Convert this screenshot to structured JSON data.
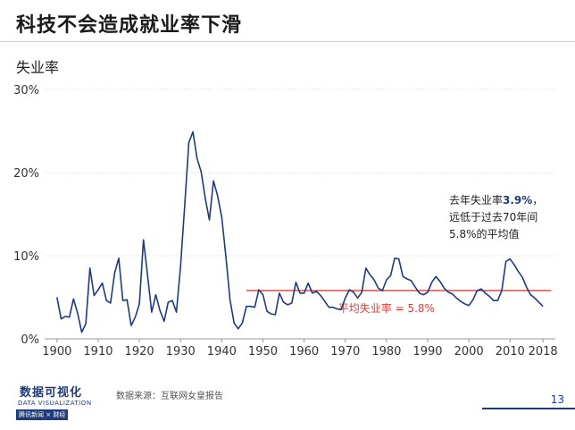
{
  "title": "科技不会造成就业率下滑",
  "footer": {
    "logo_main": "数据可视化",
    "logo_sub": "DATA VISUALIZATION",
    "logo_brand": "腾讯新闻 × 财经",
    "source": "数据来源：互联网女皇报告",
    "page_number": "13"
  },
  "colors": {
    "series": "#1f3a7d",
    "average": "#e53935",
    "axis": "#999999",
    "grid": "#d9d9d9",
    "highlight": "#1f3a7d"
  },
  "chart_data": {
    "type": "line",
    "ylabel": "失业率",
    "xlabel": "",
    "xlim": [
      1897,
      2021
    ],
    "ylim": [
      0,
      30
    ],
    "x_ticks": [
      "1900",
      "1910",
      "1920",
      "1930",
      "1940",
      "1950",
      "1960",
      "1970",
      "1980",
      "1990",
      "2000",
      "2010",
      "2018"
    ],
    "x_tick_values": [
      1900,
      1910,
      1920,
      1930,
      1940,
      1950,
      1960,
      1970,
      1980,
      1990,
      2000,
      2010,
      2018
    ],
    "y_ticks": [
      "0%",
      "10%",
      "20%",
      "30%"
    ],
    "y_tick_values": [
      0,
      10,
      20,
      30
    ],
    "grid": "horizontal",
    "series": [
      {
        "x": [
          1900,
          1901,
          1902,
          1903,
          1904,
          1905,
          1906,
          1907,
          1908,
          1909,
          1910,
          1911,
          1912,
          1913,
          1914,
          1915,
          1916,
          1917,
          1918,
          1919,
          1920,
          1921,
          1922,
          1923,
          1924,
          1925,
          1926,
          1927,
          1928,
          1929,
          1930,
          1931,
          1932,
          1933,
          1934,
          1935,
          1936,
          1937,
          1938,
          1939,
          1940,
          1941,
          1942,
          1943,
          1944,
          1945,
          1946,
          1947,
          1948,
          1949,
          1950,
          1951,
          1952,
          1953,
          1954,
          1955,
          1956,
          1957,
          1958,
          1959,
          1960,
          1961,
          1962,
          1963,
          1964,
          1965,
          1966,
          1967,
          1968,
          1969,
          1970,
          1971,
          1972,
          1973,
          1974,
          1975,
          1976,
          1977,
          1978,
          1979,
          1980,
          1981,
          1982,
          1983,
          1984,
          1985,
          1986,
          1987,
          1988,
          1989,
          1990,
          1991,
          1992,
          1993,
          1994,
          1995,
          1996,
          1997,
          1998,
          1999,
          2000,
          2001,
          2002,
          2003,
          2004,
          2005,
          2006,
          2007,
          2008,
          2009,
          2010,
          2011,
          2012,
          2013,
          2014,
          2015,
          2016,
          2017,
          2018
        ],
        "y": [
          5.0,
          2.4,
          2.7,
          2.6,
          4.8,
          3.1,
          0.8,
          1.8,
          8.5,
          5.2,
          5.9,
          6.7,
          4.6,
          4.3,
          7.9,
          9.7,
          4.6,
          4.7,
          1.6,
          2.6,
          4.2,
          11.9,
          7.6,
          3.2,
          5.3,
          3.4,
          2.1,
          4.4,
          4.6,
          3.2,
          8.7,
          15.9,
          23.6,
          24.9,
          21.7,
          20.1,
          16.9,
          14.3,
          19.0,
          17.2,
          14.6,
          9.9,
          4.7,
          1.9,
          1.2,
          1.9,
          3.9,
          3.9,
          3.8,
          5.9,
          5.3,
          3.3,
          3.0,
          2.9,
          5.5,
          4.4,
          4.1,
          4.3,
          6.8,
          5.5,
          5.5,
          6.7,
          5.5,
          5.7,
          5.2,
          4.5,
          3.8,
          3.8,
          3.6,
          3.5,
          4.9,
          5.9,
          5.6,
          4.9,
          5.6,
          8.5,
          7.7,
          7.1,
          6.1,
          5.8,
          7.1,
          7.6,
          9.7,
          9.6,
          7.5,
          7.2,
          7.0,
          6.2,
          5.5,
          5.3,
          5.6,
          6.8,
          7.5,
          6.9,
          6.1,
          5.6,
          5.4,
          4.9,
          4.5,
          4.2,
          4.0,
          4.7,
          5.8,
          6.0,
          5.5,
          5.1,
          4.6,
          4.6,
          5.8,
          9.3,
          9.6,
          8.9,
          8.1,
          7.4,
          6.2,
          5.3,
          4.9,
          4.4,
          3.9
        ]
      }
    ],
    "average": {
      "value": 5.8,
      "x_start": 1946,
      "x_end": 2020,
      "label": "平均失业率 = 5.8%"
    },
    "annotation": {
      "line1_prefix": "去年失业率",
      "line1_value": "3.9%",
      "line1_suffix": "，",
      "line2": "远低于过去70年间",
      "line3": "5.8%的平均值"
    }
  }
}
